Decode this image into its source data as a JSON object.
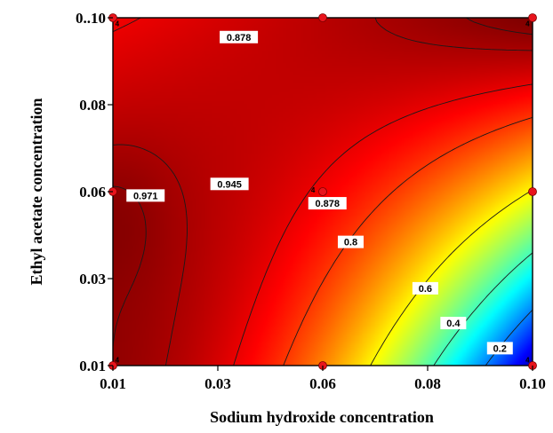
{
  "chart_data": {
    "type": "contour",
    "xlabel": "Sodium hydroxide concentration",
    "ylabel": "Ethyl acetate concentration",
    "x_ticks": [
      "0.01",
      "0.03",
      "0.06",
      "0.08",
      "0.10"
    ],
    "y_ticks": [
      "0.01",
      "0.03",
      "0.06",
      "0.08",
      "0..10"
    ],
    "xlim": [
      0.01,
      0.1
    ],
    "ylim": [
      0.01,
      0.1
    ],
    "colormap": "jet (blue low, red high)",
    "contour_levels": [
      0.2,
      0.4,
      0.6,
      0.8,
      0.878,
      0.945,
      0.971
    ],
    "contour_labels": [
      {
        "text": "0.878",
        "x": 0.037,
        "y": 0.095
      },
      {
        "text": "0.971",
        "x": 0.017,
        "y": 0.054
      },
      {
        "text": "0.945",
        "x": 0.035,
        "y": 0.057
      },
      {
        "text": "0.878",
        "x": 0.056,
        "y": 0.052
      },
      {
        "text": "0.8",
        "x": 0.061,
        "y": 0.042
      },
      {
        "text": "0.6",
        "x": 0.077,
        "y": 0.03
      },
      {
        "text": "0.4",
        "x": 0.083,
        "y": 0.021
      },
      {
        "text": "0.2",
        "x": 0.093,
        "y": 0.0145
      }
    ],
    "design_points": [
      {
        "x": 0.01,
        "y": 0.1
      },
      {
        "x": 0.055,
        "y": 0.1
      },
      {
        "x": 0.1,
        "y": 0.1
      },
      {
        "x": 0.01,
        "y": 0.055
      },
      {
        "x": 0.055,
        "y": 0.055
      },
      {
        "x": 0.1,
        "y": 0.055
      },
      {
        "x": 0.01,
        "y": 0.01
      },
      {
        "x": 0.055,
        "y": 0.01
      },
      {
        "x": 0.1,
        "y": 0.01
      }
    ],
    "replicate_labels": [
      {
        "text": "4",
        "x": 0.0105,
        "y": 0.0985
      },
      {
        "text": "4",
        "x": 0.0985,
        "y": 0.0985
      },
      {
        "text": "4",
        "x": 0.0525,
        "y": 0.0555
      },
      {
        "text": "4",
        "x": 0.0105,
        "y": 0.0115
      },
      {
        "text": "4",
        "x": 0.0985,
        "y": 0.0115
      }
    ]
  }
}
